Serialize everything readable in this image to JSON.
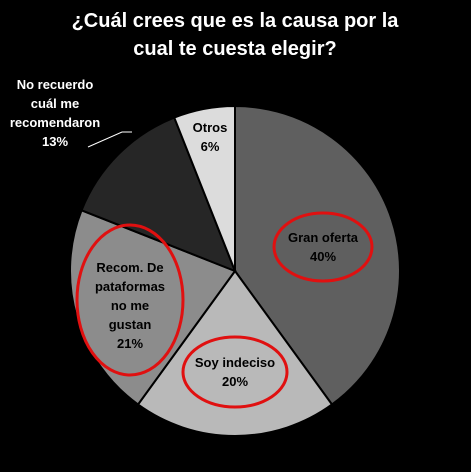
{
  "chart_data": {
    "type": "pie",
    "title_lines": [
      "¿Cuál crees que es la causa por la",
      "cual te cuesta elegir?"
    ],
    "slices": [
      {
        "label_lines": [
          "Gran oferta"
        ],
        "value": 40,
        "value_label": "40%",
        "color": "#5f5f5f",
        "text_color": "#000000",
        "circled": true
      },
      {
        "label_lines": [
          "Soy indeciso"
        ],
        "value": 20,
        "value_label": "20%",
        "color": "#b9b9b9",
        "text_color": "#000000",
        "circled": true
      },
      {
        "label_lines": [
          "Recom. De",
          "pataformas",
          "no me",
          "gustan"
        ],
        "value": 21,
        "value_label": "21%",
        "color": "#8c8c8c",
        "text_color": "#000000",
        "circled": true
      },
      {
        "label_lines": [
          "No recuerdo",
          "cuál me",
          "recomendaron"
        ],
        "value": 13,
        "value_label": "13%",
        "color": "#262626",
        "text_color": "#ffffff",
        "circled": false
      },
      {
        "label_lines": [
          "Otros"
        ],
        "value": 6,
        "value_label": "6%",
        "color": "#dcdcdc",
        "text_color": "#000000",
        "circled": false
      }
    ],
    "highlight_color": "#e01010"
  }
}
